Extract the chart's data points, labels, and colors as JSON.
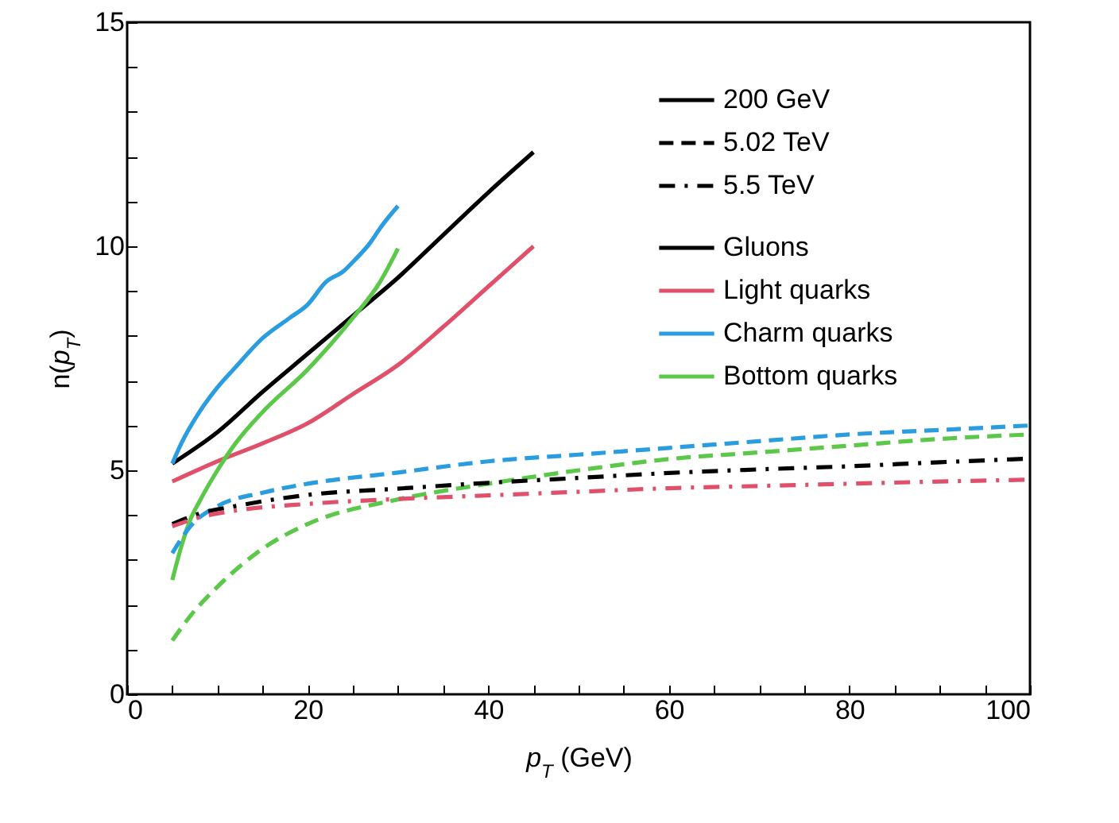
{
  "chart_data": {
    "type": "line",
    "xlabel": "p$_{T}$ (GeV)",
    "ylabel": "n(p$_{T}$)",
    "xlim": [
      0,
      100
    ],
    "ylim": [
      0,
      15
    ],
    "xticks": [
      0,
      {
        "value": 5,
        "label": null
      },
      {
        "value": 10,
        "label": null
      },
      {
        "value": 15,
        "label": null
      },
      20,
      {
        "value": 25,
        "label": null
      },
      {
        "value": 30,
        "label": null
      },
      {
        "value": 35,
        "label": null
      },
      40,
      {
        "value": 45,
        "label": null
      },
      {
        "value": 50,
        "label": null
      },
      {
        "value": 55,
        "label": null
      },
      60,
      {
        "value": 65,
        "label": null
      },
      {
        "value": 70,
        "label": null
      },
      {
        "value": 75,
        "label": null
      },
      80,
      {
        "value": 85,
        "label": null
      },
      {
        "value": 90,
        "label": null
      },
      {
        "value": 95,
        "label": null
      },
      100
    ],
    "yticks": [
      0,
      {
        "value": 1,
        "label": null
      },
      {
        "value": 2,
        "label": null
      },
      {
        "value": 3,
        "label": null
      },
      {
        "value": 4,
        "label": null
      },
      5,
      {
        "value": 6,
        "label": null
      },
      {
        "value": 7,
        "label": null
      },
      {
        "value": 8,
        "label": null
      },
      {
        "value": 9,
        "label": null
      },
      10,
      {
        "value": 11,
        "label": null
      },
      {
        "value": 12,
        "label": null
      },
      {
        "value": 13,
        "label": null
      },
      {
        "value": 14,
        "label": null
      },
      15
    ],
    "grid": false,
    "legend": "top right",
    "series": [
      {
        "name": "200 GeV",
        "color": "#000000",
        "line_style": "solid"
      },
      {
        "name": "5.02 TeV",
        "color": "#000000",
        "line_style": "dashed"
      },
      {
        "name": "5.5 TeV",
        "color": "#000000",
        "line_style": "dashdot"
      },
      {
        "name": "Gluons",
        "color": "#000000",
        "line_style": "solid",
        "x": [
          5,
          10,
          15,
          20,
          25,
          30,
          35,
          40,
          45
        ],
        "values": [
          5.15,
          5.85,
          6.75,
          7.6,
          8.45,
          9.3,
          10.25,
          11.2,
          12.1
        ]
      },
      {
        "name": "Light quarks",
        "color": "#e0506a",
        "line_style": "solid",
        "x": [
          5,
          10,
          15,
          20,
          25,
          30,
          35,
          40,
          45
        ],
        "values": [
          4.75,
          5.2,
          5.6,
          6.05,
          6.7,
          7.35,
          8.2,
          9.1,
          10.0
        ]
      },
      {
        "name": "Charm quarks",
        "color": "#2a9ce0",
        "line_style": "solid",
        "x": [
          5,
          6,
          8,
          10,
          12,
          15,
          18,
          20,
          22,
          24,
          25,
          27,
          28,
          30
        ],
        "values": [
          5.15,
          5.6,
          6.3,
          6.85,
          7.3,
          7.95,
          8.4,
          8.7,
          9.2,
          9.45,
          9.65,
          10.1,
          10.4,
          10.9
        ]
      },
      {
        "name": "Bottom quarks",
        "color": "#5cc84a",
        "line_style": "solid",
        "x": [
          5,
          6,
          7,
          8,
          10,
          12,
          15,
          20,
          25,
          28,
          30
        ],
        "values": [
          2.55,
          3.3,
          3.9,
          4.3,
          5.0,
          5.6,
          6.3,
          7.25,
          8.4,
          9.2,
          9.95
        ]
      },
      {
        "color": "#2a9ce0",
        "line_style": "dashed",
        "x": [
          5,
          7,
          10,
          15,
          20,
          30,
          40,
          50,
          60,
          70,
          80,
          90,
          100
        ],
        "values": [
          3.15,
          3.75,
          4.2,
          4.5,
          4.7,
          4.95,
          5.2,
          5.35,
          5.5,
          5.65,
          5.8,
          5.9,
          6.0
        ]
      },
      {
        "color": "#5cc84a",
        "line_style": "dashed",
        "x": [
          5,
          7,
          10,
          15,
          20,
          30,
          40,
          50,
          60,
          70,
          80,
          90,
          100
        ],
        "values": [
          1.2,
          1.75,
          2.4,
          3.25,
          3.8,
          4.35,
          4.7,
          5.0,
          5.25,
          5.4,
          5.55,
          5.7,
          5.8
        ]
      },
      {
        "color": "#000000",
        "line_style": "dashdot",
        "x": [
          5,
          8,
          12,
          20,
          30,
          40,
          50,
          60,
          70,
          80,
          90,
          100
        ],
        "values": [
          3.8,
          4.03,
          4.2,
          4.45,
          4.59,
          4.72,
          4.83,
          4.94,
          5.02,
          5.09,
          5.18,
          5.26
        ]
      },
      {
        "color": "#e0506a",
        "line_style": "dashdot",
        "x": [
          5,
          8,
          12,
          20,
          30,
          40,
          50,
          60,
          70,
          80,
          90,
          100
        ],
        "values": [
          3.75,
          3.95,
          4.1,
          4.25,
          4.36,
          4.44,
          4.52,
          4.6,
          4.65,
          4.7,
          4.75,
          4.79
        ]
      }
    ]
  }
}
